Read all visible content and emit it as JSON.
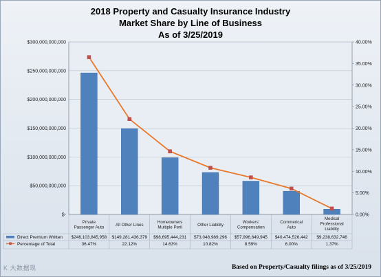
{
  "chart_data": {
    "type": "bar",
    "title": "2018 Property and Casualty Insurance Industry",
    "subtitle_lines": [
      "Market Share by Line of Business",
      "As of 3/25/2019"
    ],
    "categories": [
      [
        "Private",
        "Passenger Auto"
      ],
      [
        "All Other Lines"
      ],
      [
        "Homeowners",
        "Multiple Peril"
      ],
      [
        "Other Liability"
      ],
      [
        "Workers'",
        "Compensation"
      ],
      [
        "Commerical",
        "Auto"
      ],
      [
        "Medical",
        "Professional",
        "Liability"
      ]
    ],
    "series": [
      {
        "name": "Direct Premium Written",
        "type": "bar",
        "axis": "left",
        "color": "#4f81bd",
        "values": [
          246103845958,
          149281436379,
          98695444231,
          73048989296,
          57996649945,
          40474526442,
          9238632746
        ],
        "labels": [
          "$246,103,845,958",
          "$149,281,436,379",
          "$98,695,444,231",
          "$73,048,989,296",
          "$57,996,649,945",
          "$40,474,526,442",
          "$9,238,632,746"
        ]
      },
      {
        "name": "Percentage of Total",
        "type": "line",
        "axis": "right",
        "color": "#e8782a",
        "marker_color": "#c0504d",
        "values": [
          36.47,
          22.12,
          14.63,
          10.82,
          8.59,
          6.0,
          1.37
        ],
        "labels": [
          "36.47%",
          "22.12%",
          "14.63%",
          "10.82%",
          "8.59%",
          "6.00%",
          "1.37%"
        ]
      }
    ],
    "y_left": {
      "ylim": [
        0,
        300000000000
      ],
      "ticks": [
        "$-",
        "$50,000,000,000",
        "$100,000,000,000",
        "$150,000,000,000",
        "$200,000,000,000",
        "$250,000,000,000",
        "$300,000,000,000"
      ]
    },
    "y_right": {
      "ylim": [
        0,
        40
      ],
      "ticks": [
        "0.00%",
        "5.00%",
        "10.00%",
        "15.00%",
        "20.00%",
        "25.00%",
        "30.00%",
        "35.00%",
        "40.00%"
      ]
    },
    "grid": true,
    "legend_placement": "data-table"
  },
  "footnote": "Based on Property/Casualty filings as of 3/25/2019",
  "watermark": "K 大数据现"
}
